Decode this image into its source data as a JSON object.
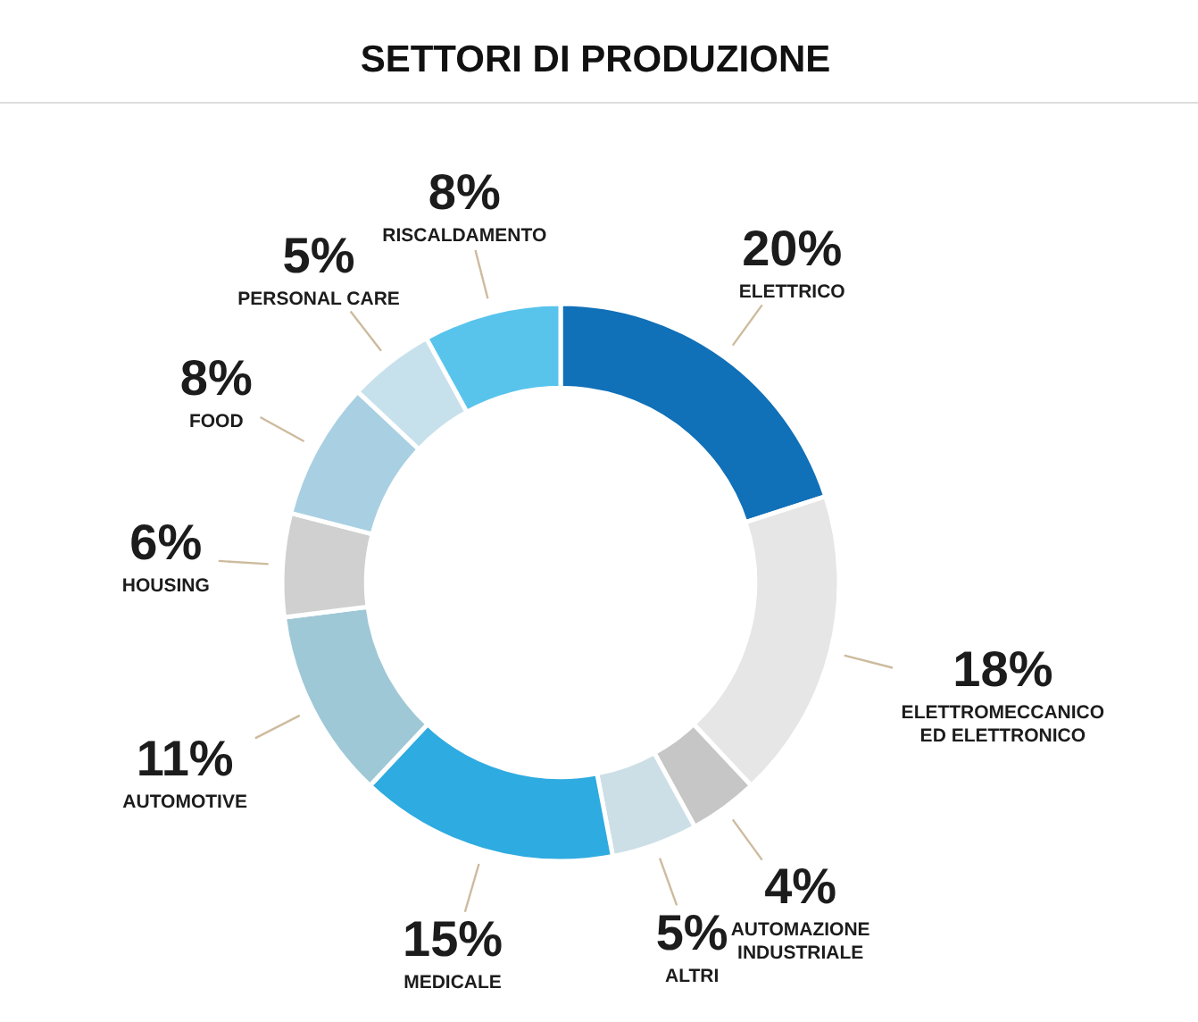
{
  "chart_data": {
    "type": "donut",
    "title": "SETTORI DI PRODUZIONE",
    "categories": [
      "ELETTRICO",
      "ELETTROMECCANICO ED ELETTRONICO",
      "AUTOMAZIONE INDUSTRIALE",
      "ALTRI",
      "MEDICALE",
      "AUTOMOTIVE",
      "HOUSING",
      "FOOD",
      "PERSONAL CARE",
      "RISCALDAMENTO"
    ],
    "values": [
      20,
      18,
      4,
      5,
      15,
      11,
      6,
      8,
      5,
      8
    ],
    "colors": [
      "#1070b8",
      "#e6e6e6",
      "#c6c6c6",
      "#cddfe6",
      "#2eabe0",
      "#9fc8d7",
      "#d0d0d0",
      "#a8d0e2",
      "#c7e1ec",
      "#58c4ec"
    ],
    "value_labels": [
      "20%",
      "18%",
      "4%",
      "5%",
      "15%",
      "11%",
      "6%",
      "8%",
      "5%",
      "8%"
    ]
  }
}
